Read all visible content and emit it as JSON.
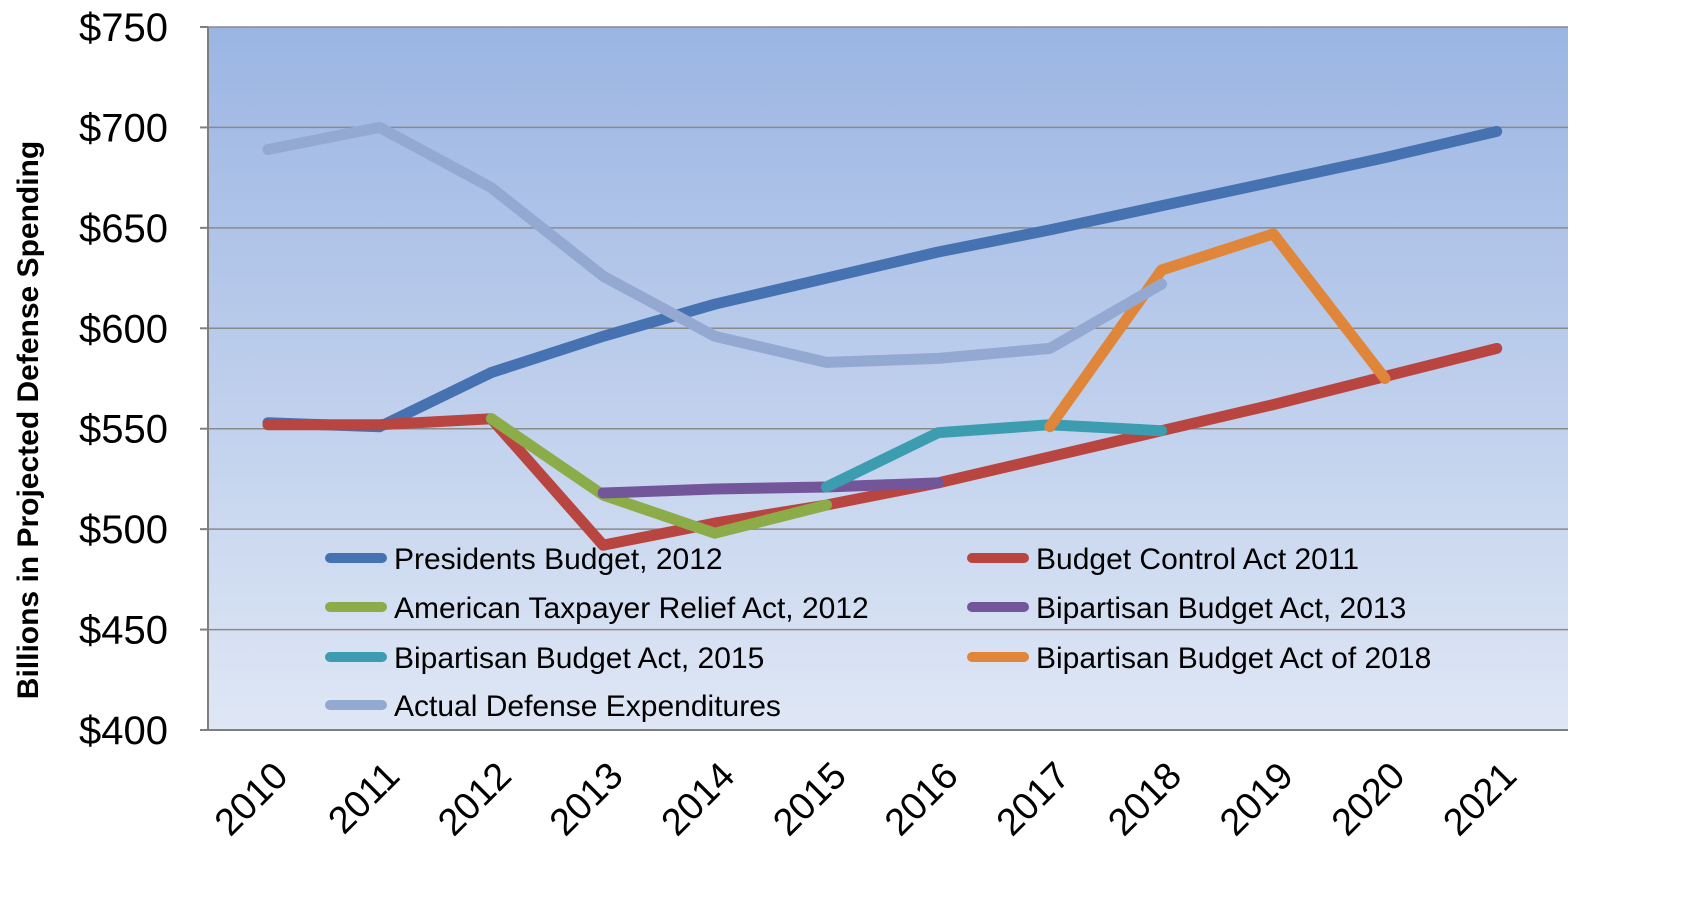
{
  "chart_data": {
    "type": "line",
    "ylabel": "Billions in Projected Defense Spending",
    "xlabel": "",
    "x": [
      "2010",
      "2011",
      "2012",
      "2013",
      "2014",
      "2015",
      "2016",
      "2017",
      "2018",
      "2019",
      "2020",
      "2021"
    ],
    "yticks": [
      "$400",
      "$450",
      "$500",
      "$550",
      "$600",
      "$650",
      "$700",
      "$750"
    ],
    "ytick_values": [
      400,
      450,
      500,
      550,
      600,
      650,
      700,
      750
    ],
    "ylim": [
      400,
      750
    ],
    "grid": true,
    "legend_position": "bottom-inside",
    "series": [
      {
        "name": "Presidents Budget, 2012",
        "color": "#4672b1",
        "values": [
          553,
          551,
          578,
          596,
          612,
          625,
          638,
          649,
          661,
          673,
          685,
          698
        ]
      },
      {
        "name": "Budget Control Act 2011",
        "color": "#b94540",
        "values": [
          552,
          552,
          555,
          492,
          503,
          512,
          523,
          536,
          549,
          562,
          576,
          590
        ]
      },
      {
        "name": "American Taxpayer Relief Act, 2012",
        "color": "#8bac48",
        "values": [
          null,
          null,
          555,
          517,
          498,
          512,
          null,
          null,
          null,
          null,
          null,
          null
        ]
      },
      {
        "name": "Bipartisan Budget Act, 2013",
        "color": "#73559a",
        "values": [
          null,
          null,
          null,
          518,
          520,
          521,
          523,
          null,
          null,
          null,
          null,
          null
        ]
      },
      {
        "name": "Bipartisan Budget Act, 2015",
        "color": "#3c9db0",
        "values": [
          null,
          null,
          null,
          null,
          null,
          521,
          548,
          552,
          549,
          null,
          null,
          null
        ]
      },
      {
        "name": "Bipartisan Budget Act of 2018",
        "color": "#e0863a",
        "values": [
          null,
          null,
          null,
          null,
          null,
          null,
          null,
          551,
          629,
          647,
          575,
          null
        ]
      },
      {
        "name": "Actual Defense Expenditures",
        "color": "#93a9d1",
        "values": [
          689,
          700,
          670,
          626,
          596,
          583,
          585,
          590,
          622,
          null,
          null,
          null
        ]
      }
    ]
  }
}
